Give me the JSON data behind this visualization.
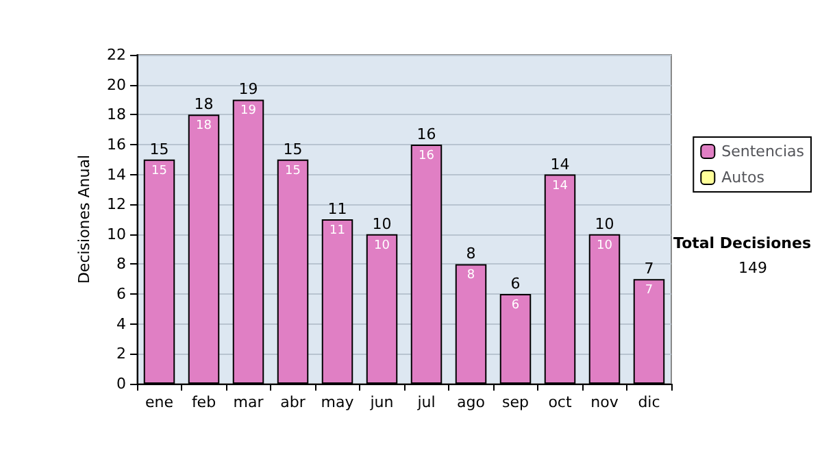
{
  "chart_data": {
    "type": "bar",
    "ylabel": "Decisiones Anual",
    "categories": [
      "ene",
      "feb",
      "mar",
      "abr",
      "may",
      "jun",
      "jul",
      "ago",
      "sep",
      "oct",
      "nov",
      "dic"
    ],
    "series": [
      {
        "name": "Sentencias",
        "color": "#e07fc4",
        "values": [
          15,
          18,
          19,
          15,
          11,
          10,
          16,
          8,
          6,
          14,
          10,
          7
        ],
        "value_labels": [
          "15",
          "18",
          "19",
          "15",
          "11",
          "10",
          "16",
          "8",
          "6",
          "14",
          "10",
          "7"
        ]
      },
      {
        "name": "Autos",
        "color": "#ffff99",
        "values": [
          null,
          null,
          null,
          null,
          null,
          null,
          null,
          null,
          null,
          null,
          null,
          null
        ]
      }
    ],
    "ylim": [
      0,
      22
    ],
    "yticks": [
      0,
      2,
      4,
      6,
      8,
      10,
      12,
      14,
      16,
      18,
      20,
      22
    ],
    "grid": "y",
    "legend": "right",
    "annotations": [
      "Total Decisiones",
      "149",
      {
        "text": "15",
        "x": "ene",
        "y": 15
      },
      {
        "text": "18",
        "x": "feb",
        "y": 18
      },
      {
        "text": "19",
        "x": "mar",
        "y": 19
      },
      {
        "text": "15",
        "x": "abr",
        "y": 15
      },
      {
        "text": "11",
        "x": "may",
        "y": 11
      },
      {
        "text": "10",
        "x": "jun",
        "y": 10
      },
      {
        "text": "16",
        "x": "jul",
        "y": 16
      },
      {
        "text": "8",
        "x": "ago",
        "y": 8
      },
      {
        "text": "6",
        "x": "sep",
        "y": 6
      },
      {
        "text": "14",
        "x": "oct",
        "y": 14
      },
      {
        "text": "10",
        "x": "nov",
        "y": 10
      },
      {
        "text": "7",
        "x": "dic",
        "y": 7
      }
    ]
  }
}
